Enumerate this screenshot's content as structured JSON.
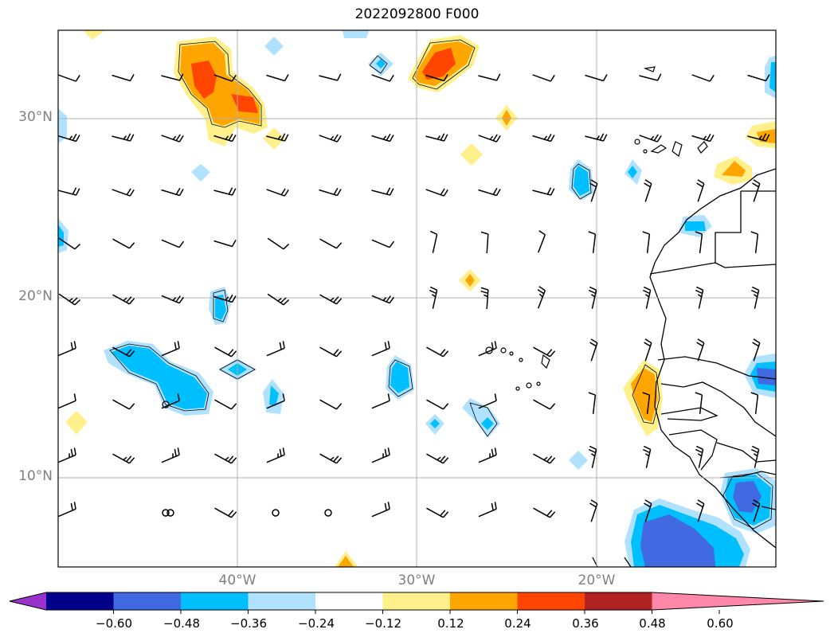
{
  "title": "2022092800 F000",
  "map": {
    "lat_labels": [
      "30°N",
      "20°N",
      "10°N"
    ],
    "lat_values": [
      30,
      20,
      10
    ],
    "lon_labels": [
      "40°W",
      "30°W",
      "20°W"
    ],
    "lon_values": [
      -40,
      -30,
      -20
    ],
    "lon_range": [
      -50,
      -10
    ],
    "lat_range": [
      5,
      35
    ],
    "grid": true
  },
  "colorbar": {
    "tick_labels": [
      "−0.60",
      "−0.48",
      "−0.36",
      "−0.24",
      "−0.12",
      "0.12",
      "0.24",
      "0.36",
      "0.48",
      "0.60"
    ],
    "levels": [
      -0.6,
      -0.48,
      -0.36,
      -0.24,
      -0.12,
      0.12,
      0.24,
      0.36,
      0.48,
      0.6
    ],
    "colors": [
      "#9932cc",
      "#00008b",
      "#4169e1",
      "#00bfff",
      "#b0e2ff",
      "#ffffff",
      "#fff08c",
      "#ffa500",
      "#ff4500",
      "#b22222",
      "#ff88aa"
    ]
  }
}
